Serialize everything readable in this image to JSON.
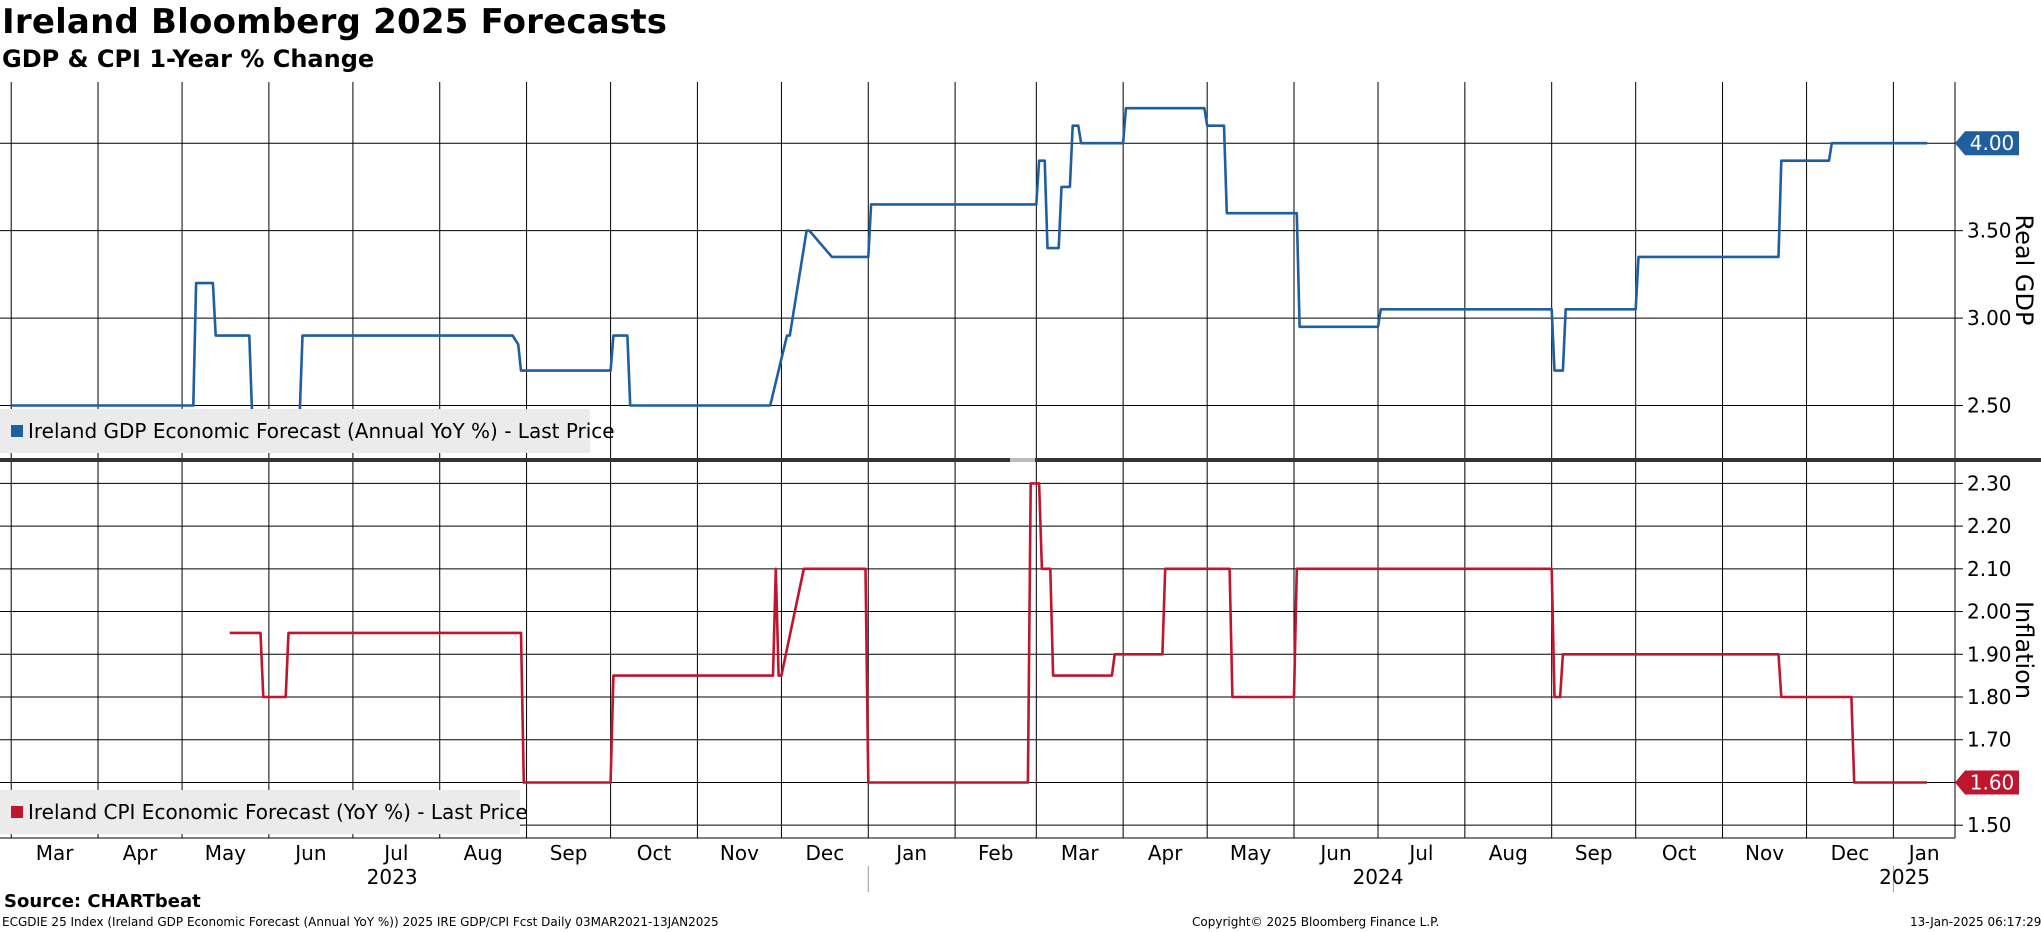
{
  "title": "Ireland Bloomberg 2025 Forecasts",
  "subtitle": "GDP & CPI 1-Year % Change",
  "source": "Source: CHARTbeat",
  "footer_left": "ECGDIE 25 Index (Ireland GDP Economic Forecast (Annual YoY %)) 2025 IRE GDP/CPI Fcst  Daily 03MAR2021-13JAN2025",
  "footer_center": "Copyright© 2025 Bloomberg Finance L.P.",
  "footer_right": "13-Jan-2025 06:17:29",
  "colors": {
    "gdp": "#1f5fa0",
    "cpi": "#c0152f"
  },
  "chart_data": [
    {
      "type": "line",
      "panel": "top",
      "ylabel": "Real GDP",
      "ylim": [
        2.2,
        4.35
      ],
      "yticks": [
        "2.50",
        "3.00",
        "3.50",
        "4.00"
      ],
      "last_value_label": "4.00",
      "legend": "Ireland GDP Economic Forecast (Annual YoY %) - Last Price",
      "legend_position": "bottom-left",
      "grid": true,
      "series": [
        {
          "name": "Ireland GDP Economic Forecast (Annual YoY %) - Last Price",
          "x": [
            "2023-03-01",
            "2023-05-05",
            "2023-05-06",
            "2023-05-12",
            "2023-05-13",
            "2023-05-25",
            "2023-05-26",
            "2023-06-12",
            "2023-06-13",
            "2023-08-27",
            "2023-08-29",
            "2023-08-30",
            "2023-10-01",
            "2023-10-02",
            "2023-10-07",
            "2023-10-08",
            "2023-11-27",
            "2023-12-03",
            "2023-12-04",
            "2023-12-10",
            "2023-12-11",
            "2023-12-19",
            "2023-12-20",
            "2024-01-01",
            "2024-01-02",
            "2024-03-01",
            "2024-03-02",
            "2024-03-04",
            "2024-03-05",
            "2024-03-09",
            "2024-03-10",
            "2024-03-13",
            "2024-03-14",
            "2024-03-16",
            "2024-03-17",
            "2024-03-20",
            "2024-04-01",
            "2024-04-02",
            "2024-04-30",
            "2024-05-01",
            "2024-05-07",
            "2024-05-08",
            "2024-06-02",
            "2024-06-03",
            "2024-07-01",
            "2024-07-02",
            "2024-09-01",
            "2024-09-02",
            "2024-09-05",
            "2024-09-06",
            "2024-10-01",
            "2024-10-02",
            "2024-11-21",
            "2024-11-22",
            "2024-12-09",
            "2024-12-10",
            "2025-01-13"
          ],
          "y": [
            2.5,
            2.5,
            3.2,
            3.2,
            2.9,
            2.9,
            2.45,
            2.45,
            2.9,
            2.9,
            2.85,
            2.7,
            2.7,
            2.9,
            2.9,
            2.5,
            2.5,
            2.9,
            2.9,
            3.5,
            3.5,
            3.35,
            3.35,
            3.35,
            3.65,
            3.65,
            3.9,
            3.9,
            3.4,
            3.4,
            3.75,
            3.75,
            4.1,
            4.1,
            4.0,
            4.0,
            4.0,
            4.2,
            4.2,
            4.1,
            4.1,
            3.6,
            3.6,
            2.95,
            2.95,
            3.05,
            3.05,
            2.7,
            2.7,
            3.05,
            3.05,
            3.35,
            3.35,
            3.9,
            3.9,
            4.0,
            4.0
          ]
        }
      ]
    },
    {
      "type": "line",
      "panel": "bottom",
      "ylabel": "Inflation",
      "ylim": [
        1.47,
        2.35
      ],
      "yticks": [
        "1.50",
        "1.60",
        "1.70",
        "1.80",
        "1.90",
        "2.00",
        "2.10",
        "2.20",
        "2.30"
      ],
      "last_value_label": "1.60",
      "legend": "Ireland CPI Economic Forecast (YoY %) - Last Price",
      "legend_position": "bottom-left",
      "grid": true,
      "series": [
        {
          "name": "Ireland CPI Economic Forecast (YoY %) - Last Price",
          "x": [
            "2023-05-18",
            "2023-05-29",
            "2023-05-30",
            "2023-06-07",
            "2023-06-08",
            "2023-08-30",
            "2023-08-31",
            "2023-10-01",
            "2023-10-02",
            "2023-11-28",
            "2023-11-29",
            "2023-11-30",
            "2023-12-01",
            "2023-12-09",
            "2023-12-10",
            "2023-12-31",
            "2024-01-01",
            "2024-02-27",
            "2024-02-28",
            "2024-03-02",
            "2024-03-03",
            "2024-03-06",
            "2024-03-07",
            "2024-03-28",
            "2024-03-29",
            "2024-04-15",
            "2024-04-16",
            "2024-05-09",
            "2024-05-10",
            "2024-06-01",
            "2024-06-02",
            "2024-09-01",
            "2024-09-02",
            "2024-09-04",
            "2024-09-05",
            "2024-11-21",
            "2024-11-22",
            "2024-12-17",
            "2024-12-18",
            "2025-01-13"
          ],
          "y": [
            1.95,
            1.95,
            1.8,
            1.8,
            1.95,
            1.95,
            1.6,
            1.6,
            1.85,
            1.85,
            2.1,
            1.85,
            1.85,
            2.1,
            2.1,
            2.1,
            1.6,
            1.6,
            2.3,
            2.3,
            2.1,
            2.1,
            1.85,
            1.85,
            1.9,
            1.9,
            2.1,
            2.1,
            1.8,
            1.8,
            2.1,
            2.1,
            1.8,
            1.8,
            1.9,
            1.9,
            1.8,
            1.8,
            1.6,
            1.6
          ]
        }
      ]
    }
  ],
  "x_axis": {
    "months": [
      "Mar",
      "Apr",
      "May",
      "Jun",
      "Jul",
      "Aug",
      "Sep",
      "Oct",
      "Nov",
      "Dec",
      "Jan",
      "Feb",
      "Mar",
      "Apr",
      "May",
      "Jun",
      "Jul",
      "Aug",
      "Sep",
      "Oct",
      "Nov",
      "Dec",
      "Jan"
    ],
    "month_starts": [
      "2023-03-01",
      "2023-04-01",
      "2023-05-01",
      "2023-06-01",
      "2023-07-01",
      "2023-08-01",
      "2023-09-01",
      "2023-10-01",
      "2023-11-01",
      "2023-12-01",
      "2024-01-01",
      "2024-02-01",
      "2024-03-01",
      "2024-04-01",
      "2024-05-01",
      "2024-06-01",
      "2024-07-01",
      "2024-08-01",
      "2024-09-01",
      "2024-10-01",
      "2024-11-01",
      "2024-12-01",
      "2025-01-01"
    ],
    "years": [
      {
        "label": "2023",
        "date": "2023-07-15"
      },
      {
        "label": "2024",
        "date": "2024-07-01"
      },
      {
        "label": "2025",
        "date": "2025-01-05"
      }
    ],
    "range": [
      "2023-02-25",
      "2025-01-23"
    ]
  }
}
